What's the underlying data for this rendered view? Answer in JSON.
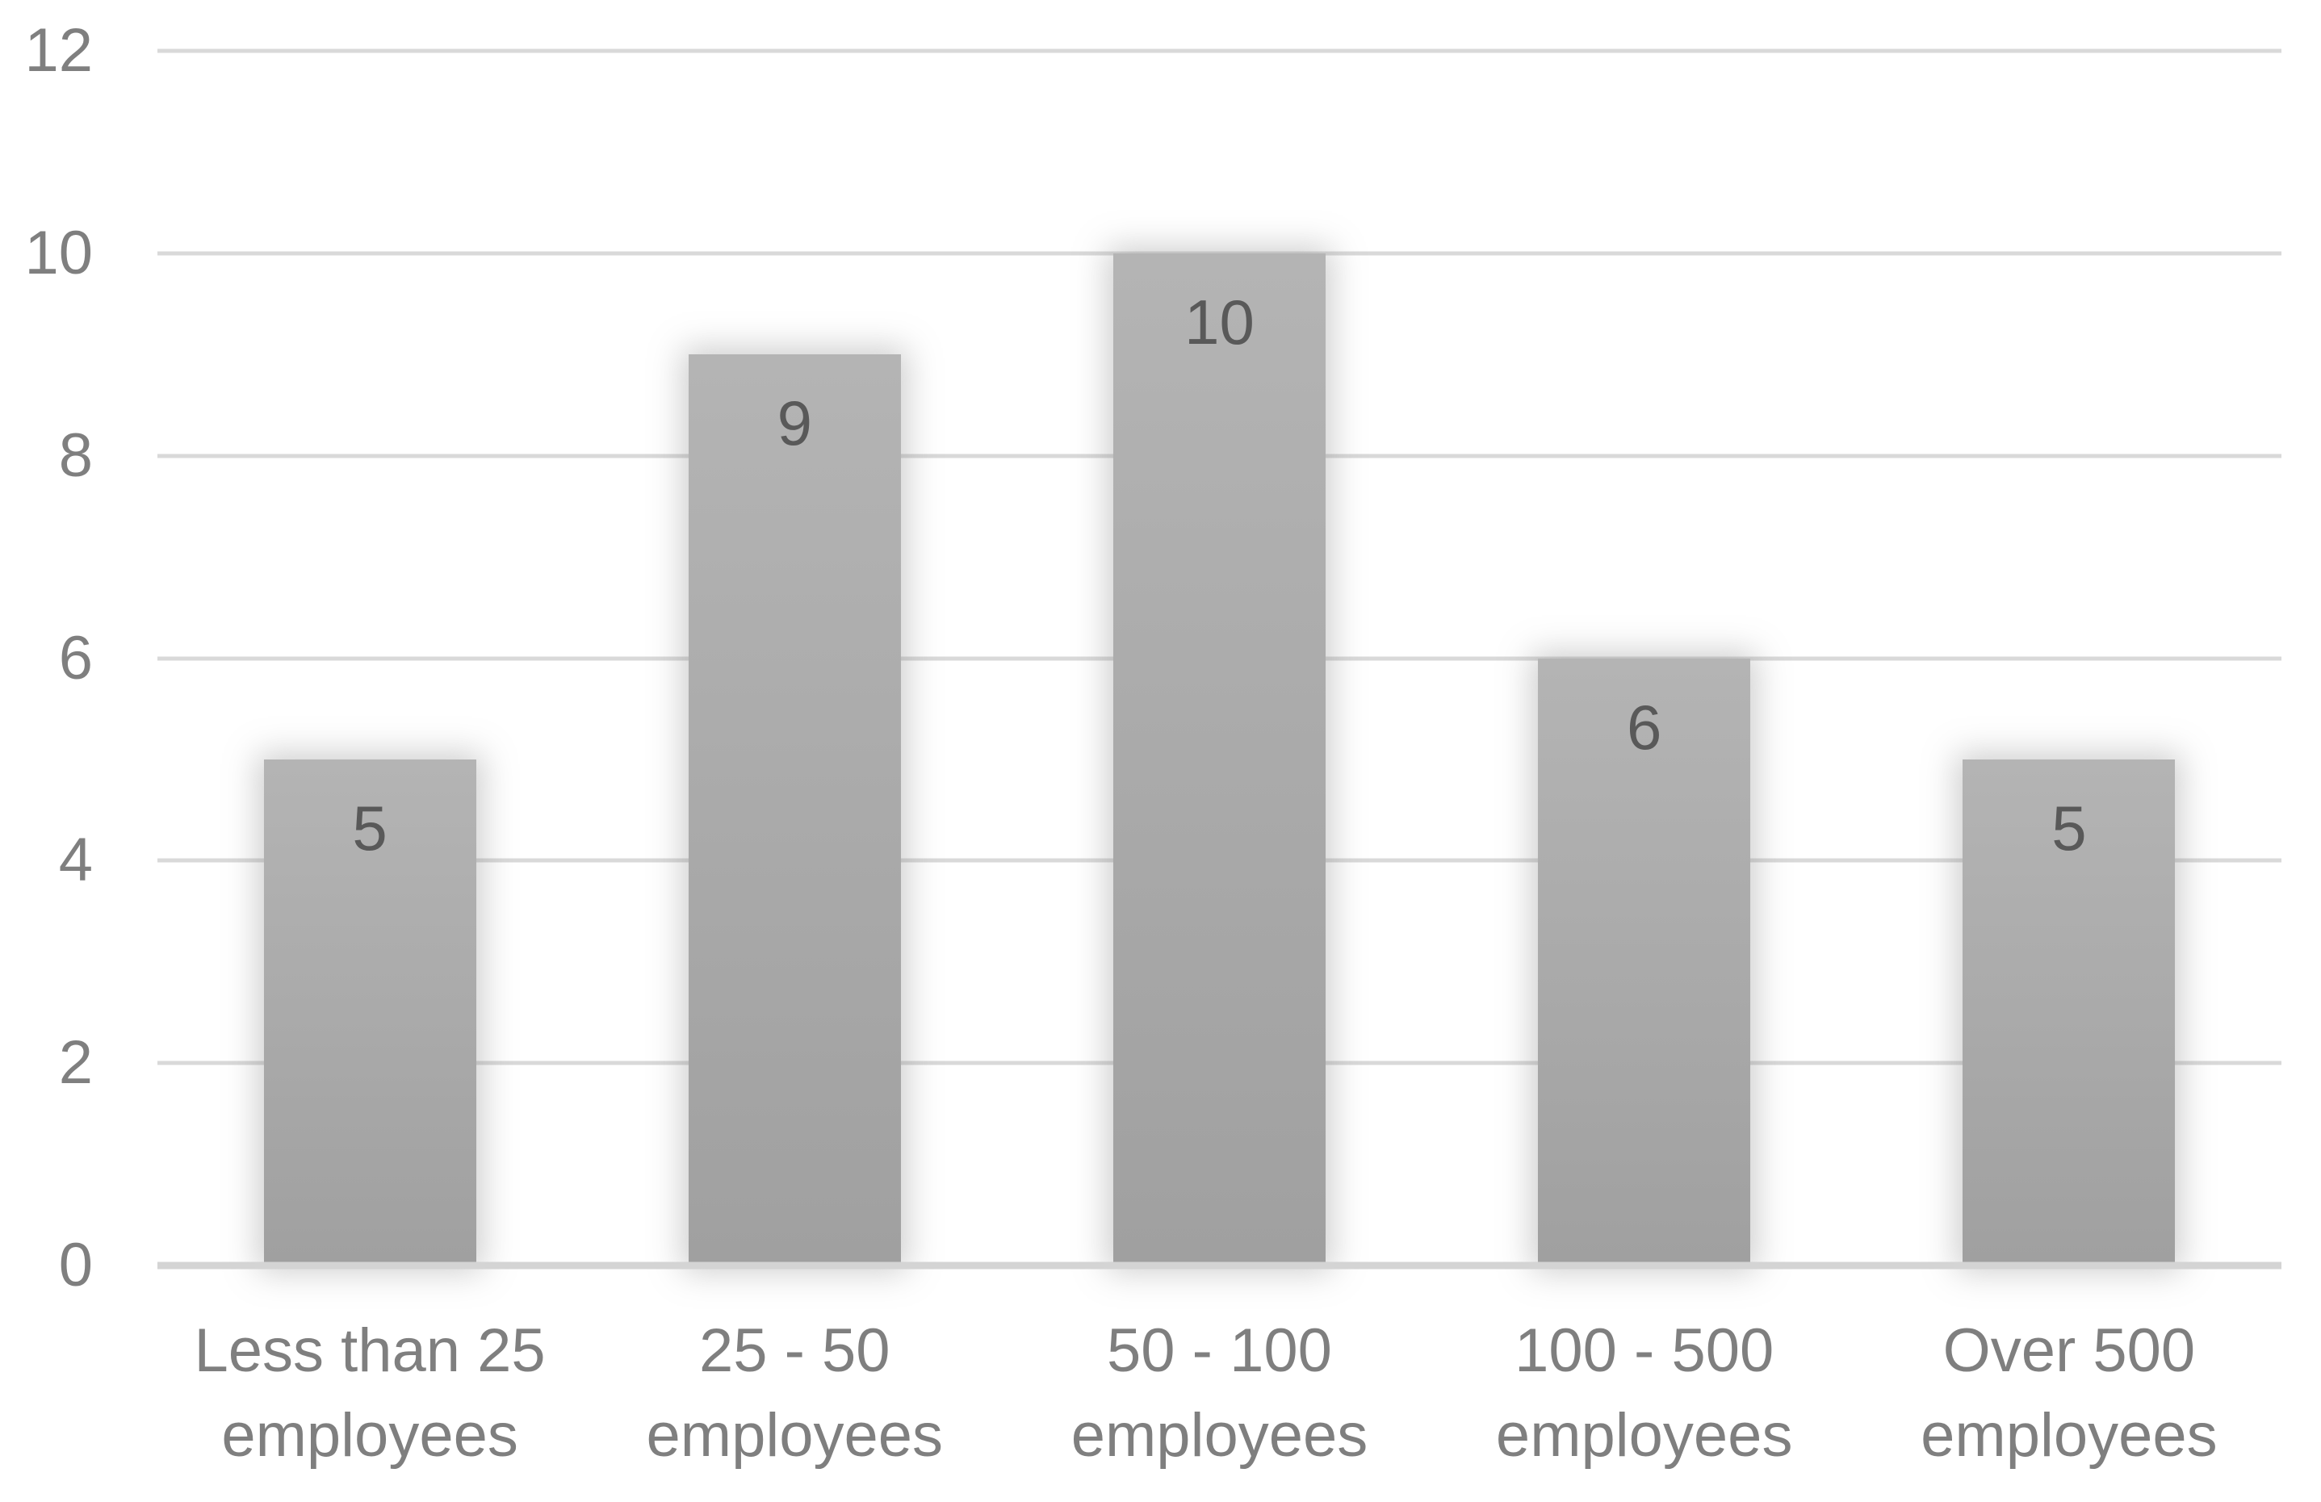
{
  "chart_data": {
    "type": "bar",
    "title": "",
    "xlabel": "",
    "ylabel": "",
    "categories": [
      "Less than 25 employees",
      "25 - 50 employees",
      "50 - 100 employees",
      "100 - 500 employees",
      "Over 500 employees"
    ],
    "category_lines": [
      [
        "Less than 25",
        "employees"
      ],
      [
        "25 - 50",
        "employees"
      ],
      [
        "50 - 100",
        "employees"
      ],
      [
        "100 - 500",
        "employees"
      ],
      [
        "Over 500",
        "employees"
      ]
    ],
    "values": [
      5,
      9,
      10,
      6,
      5
    ],
    "data_labels": [
      "5",
      "9",
      "10",
      "6",
      "5"
    ],
    "ylim": [
      0,
      12
    ],
    "yticks": [
      0,
      2,
      4,
      6,
      8,
      10,
      12
    ],
    "grid": true,
    "legend": false,
    "data_label_position": "inside-end",
    "colors": {
      "background": "#ffffff",
      "bar_fill_top": "#b4b4b4",
      "bar_fill_bottom": "#a0a0a0",
      "data_label": "#595959",
      "axis_label": "#7f7f7f",
      "gridline": "#d9d9d9",
      "axis_line": "#d4d4d4"
    }
  }
}
